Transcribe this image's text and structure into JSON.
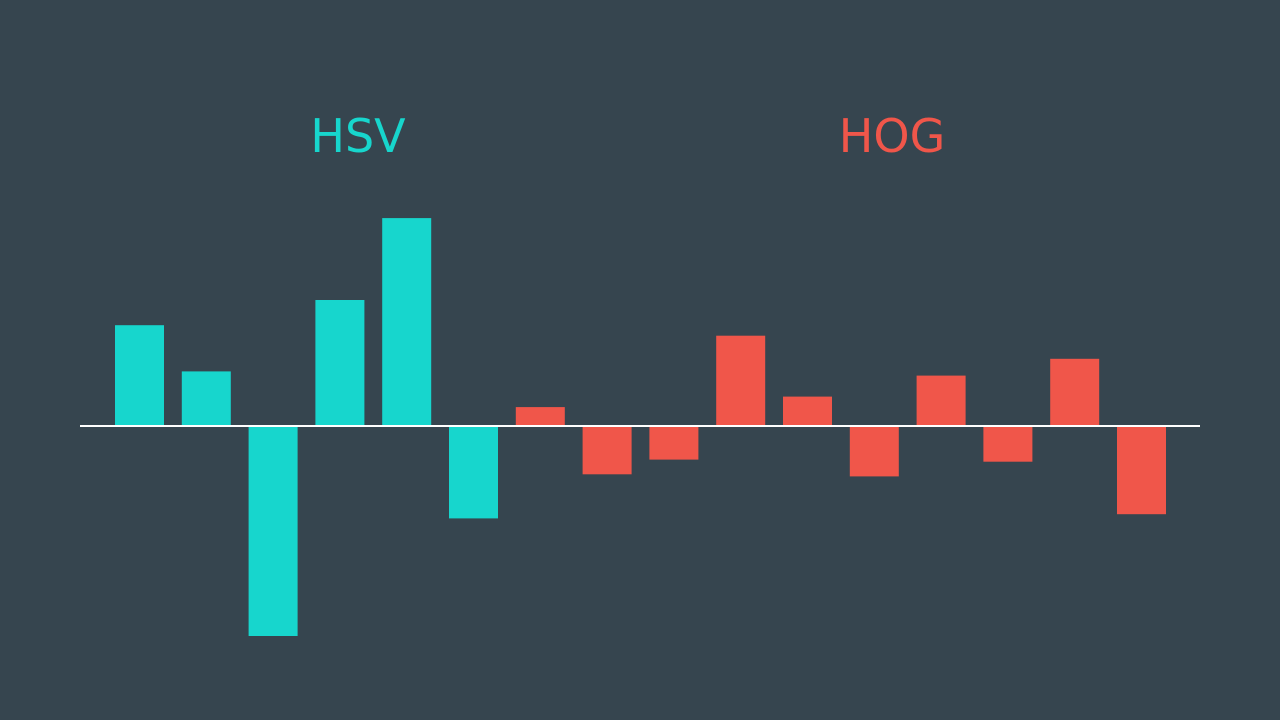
{
  "chart_data": {
    "type": "bar",
    "background": "#36454f",
    "baseline_color": "#ffffff",
    "grid": false,
    "legend": "none",
    "ylim": [
      -100,
      100
    ],
    "series": [
      {
        "name": "HSV",
        "color": "#17d6cd",
        "values": [
          48,
          26,
          -100,
          60,
          99,
          -44
        ]
      },
      {
        "name": "HOG",
        "color": "#f0564a",
        "values": [
          9,
          -23,
          -16,
          43,
          14,
          -24,
          24,
          -17,
          32,
          -42
        ]
      }
    ]
  }
}
